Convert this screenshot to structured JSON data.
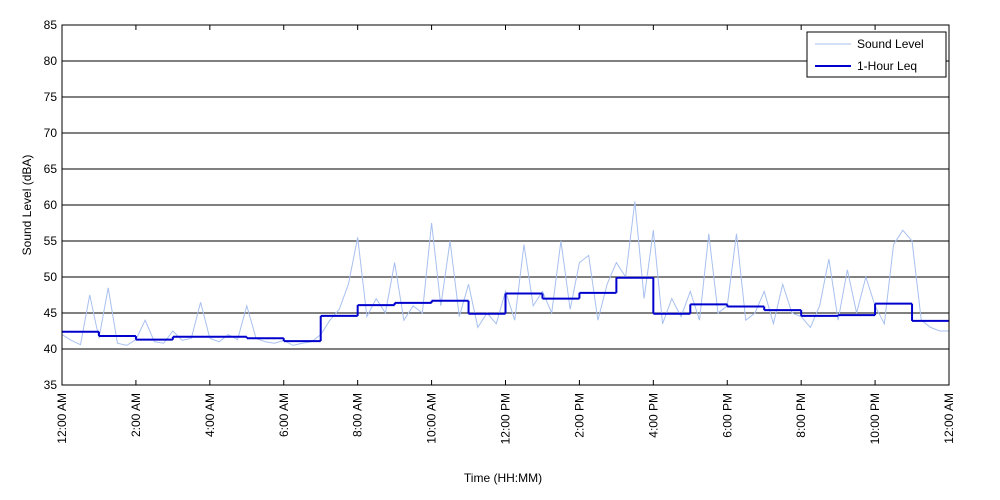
{
  "chart_data": {
    "type": "line",
    "xlabel": "Time (HH:MM)",
    "ylabel": "Sound Level (dBA)",
    "xlim": [
      0,
      24
    ],
    "ylim": [
      35,
      85
    ],
    "yticks": [
      35,
      40,
      45,
      50,
      55,
      60,
      65,
      70,
      75,
      80,
      85
    ],
    "xticks": [
      {
        "value": 0,
        "label": "12:00 AM"
      },
      {
        "value": 2,
        "label": "2:00 AM"
      },
      {
        "value": 4,
        "label": "4:00 AM"
      },
      {
        "value": 6,
        "label": "6:00 AM"
      },
      {
        "value": 8,
        "label": "8:00 AM"
      },
      {
        "value": 10,
        "label": "10:00 AM"
      },
      {
        "value": 12,
        "label": "12:00 PM"
      },
      {
        "value": 14,
        "label": "2:00 PM"
      },
      {
        "value": 16,
        "label": "4:00 PM"
      },
      {
        "value": 18,
        "label": "6:00 PM"
      },
      {
        "value": 20,
        "label": "8:00 PM"
      },
      {
        "value": 22,
        "label": "10:00 PM"
      },
      {
        "value": 24,
        "label": "12:00 AM"
      }
    ],
    "grid": true,
    "legend": "upper right",
    "series": [
      {
        "name": "Sound Level",
        "color": "#a8c0f0",
        "style": "line",
        "x": [
          0,
          0.25,
          0.5,
          0.75,
          1,
          1.25,
          1.5,
          1.75,
          2,
          2.25,
          2.5,
          2.75,
          3,
          3.25,
          3.5,
          3.75,
          4,
          4.25,
          4.5,
          4.75,
          5,
          5.25,
          5.5,
          5.75,
          6,
          6.25,
          6.5,
          6.75,
          7,
          7.25,
          7.5,
          7.75,
          8,
          8.25,
          8.5,
          8.75,
          9,
          9.25,
          9.5,
          9.75,
          10,
          10.25,
          10.5,
          10.75,
          11,
          11.25,
          11.5,
          11.75,
          12,
          12.25,
          12.5,
          12.75,
          13,
          13.25,
          13.5,
          13.75,
          14,
          14.25,
          14.5,
          14.75,
          15,
          15.25,
          15.5,
          15.75,
          16,
          16.25,
          16.5,
          16.75,
          17,
          17.25,
          17.5,
          17.75,
          18,
          18.25,
          18.5,
          18.75,
          19,
          19.25,
          19.5,
          19.75,
          20,
          20.25,
          20.5,
          20.75,
          21,
          21.25,
          21.5,
          21.75,
          22,
          22.25,
          22.5,
          22.75,
          23,
          23.25,
          23.5,
          23.75,
          24
        ],
        "values": [
          42,
          41.2,
          40.6,
          47.5,
          41.5,
          48.5,
          40.8,
          40.5,
          41.3,
          44,
          41,
          40.8,
          42.5,
          41.2,
          41.5,
          46.5,
          41.5,
          41,
          42,
          41.3,
          46,
          41.5,
          41,
          40.8,
          41.2,
          40.5,
          40.8,
          41,
          42,
          44,
          45.5,
          49,
          55.5,
          44.5,
          47,
          45,
          52,
          44,
          46,
          45,
          57.5,
          46,
          55,
          44.5,
          49,
          43,
          45,
          43.5,
          48,
          44,
          54.5,
          46,
          48,
          45,
          55,
          45.5,
          52,
          53,
          44,
          49,
          52,
          50,
          60.5,
          47,
          56.5,
          43.5,
          47,
          44.5,
          48,
          44,
          56,
          45,
          46,
          56,
          44,
          45,
          48,
          43.5,
          49,
          45,
          44.5,
          43,
          46,
          52.5,
          44,
          51,
          45,
          50,
          46,
          43.5,
          54.5,
          56.5,
          55,
          44,
          43,
          42.5,
          42.5
        ]
      },
      {
        "name": "1-Hour Leq",
        "color": "#0000cc",
        "style": "step",
        "x": [
          0,
          1,
          2,
          3,
          4,
          5,
          6,
          7,
          8,
          9,
          10,
          11,
          12,
          13,
          14,
          15,
          16,
          17,
          18,
          19,
          20,
          21,
          22,
          23
        ],
        "values": [
          42.4,
          41.8,
          41.3,
          41.7,
          41.7,
          41.5,
          41.1,
          44.6,
          46.1,
          46.4,
          46.7,
          44.9,
          47.7,
          47.0,
          47.8,
          49.9,
          44.9,
          46.2,
          45.9,
          45.4,
          44.6,
          44.7,
          46.3,
          43.9
        ]
      }
    ]
  }
}
